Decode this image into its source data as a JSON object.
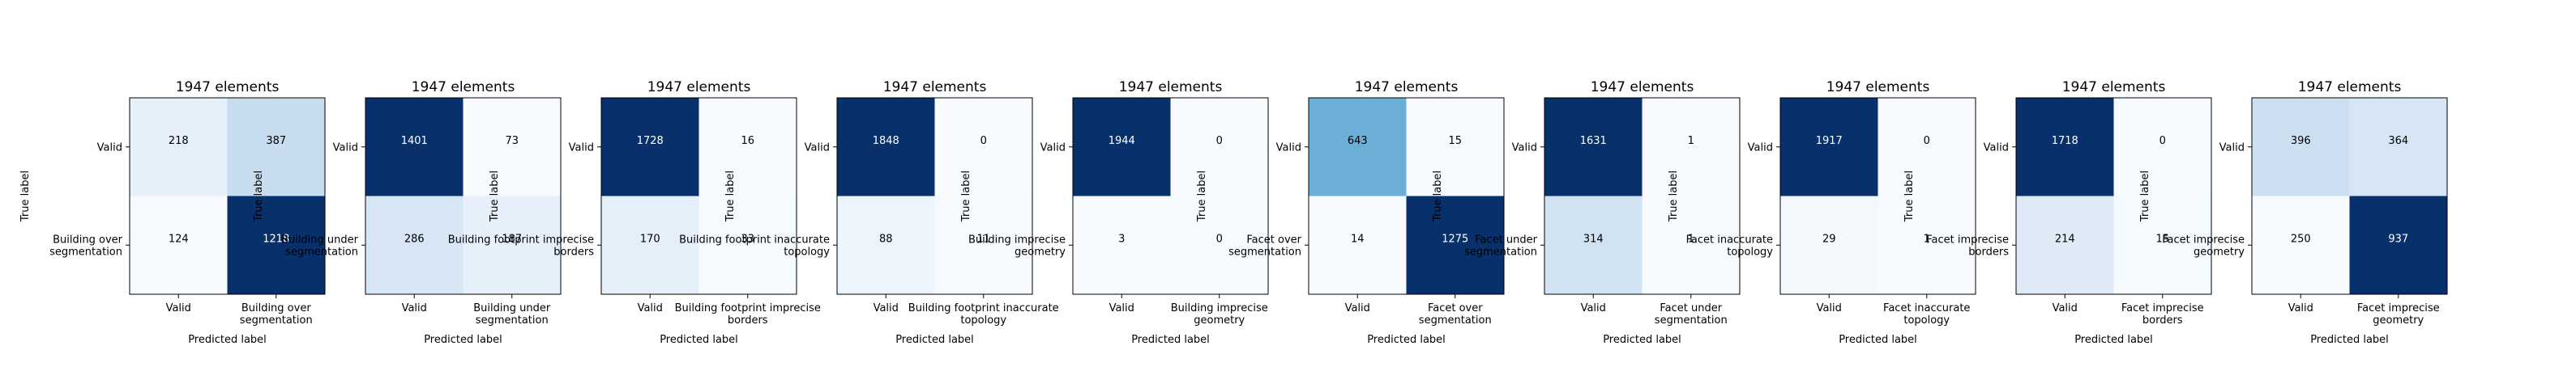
{
  "chart_data": [
    {
      "type": "heatmap",
      "title": "1947 elements",
      "xlabel": "Predicted label",
      "ylabel": "True label",
      "x_tick_labels": [
        "Valid",
        "Building over\nsegmentation"
      ],
      "y_tick_labels": [
        "Valid",
        "Building over\nsegmentation"
      ],
      "matrix": [
        [
          218,
          387
        ],
        [
          124,
          1218
        ]
      ]
    },
    {
      "type": "heatmap",
      "title": "1947 elements",
      "xlabel": "Predicted label",
      "ylabel": "True label",
      "x_tick_labels": [
        "Valid",
        "Building under\nsegmentation"
      ],
      "y_tick_labels": [
        "Valid",
        "Building under\nsegmentation"
      ],
      "matrix": [
        [
          1401,
          73
        ],
        [
          286,
          187
        ]
      ]
    },
    {
      "type": "heatmap",
      "title": "1947 elements",
      "xlabel": "Predicted label",
      "ylabel": "True label",
      "x_tick_labels": [
        "Valid",
        "Building footprint imprecise\nborders"
      ],
      "y_tick_labels": [
        "Valid",
        "Building footprint imprecise\nborders"
      ],
      "matrix": [
        [
          1728,
          16
        ],
        [
          170,
          33
        ]
      ]
    },
    {
      "type": "heatmap",
      "title": "1947 elements",
      "xlabel": "Predicted label",
      "ylabel": "True label",
      "x_tick_labels": [
        "Valid",
        "Building footprint inaccurate\ntopology"
      ],
      "y_tick_labels": [
        "Valid",
        "Building footprint inaccurate\ntopology"
      ],
      "matrix": [
        [
          1848,
          0
        ],
        [
          88,
          11
        ]
      ]
    },
    {
      "type": "heatmap",
      "title": "1947 elements",
      "xlabel": "Predicted label",
      "ylabel": "True label",
      "x_tick_labels": [
        "Valid",
        "Building imprecise\ngeometry"
      ],
      "y_tick_labels": [
        "Valid",
        "Building imprecise\ngeometry"
      ],
      "matrix": [
        [
          1944,
          0
        ],
        [
          3,
          0
        ]
      ]
    },
    {
      "type": "heatmap",
      "title": "1947 elements",
      "xlabel": "Predicted label",
      "ylabel": "True label",
      "x_tick_labels": [
        "Valid",
        "Facet over\nsegmentation"
      ],
      "y_tick_labels": [
        "Valid",
        "Facet over\nsegmentation"
      ],
      "matrix": [
        [
          643,
          15
        ],
        [
          14,
          1275
        ]
      ]
    },
    {
      "type": "heatmap",
      "title": "1947 elements",
      "xlabel": "Predicted label",
      "ylabel": "True label",
      "x_tick_labels": [
        "Valid",
        "Facet under\nsegmentation"
      ],
      "y_tick_labels": [
        "Valid",
        "Facet under\nsegmentation"
      ],
      "matrix": [
        [
          1631,
          1
        ],
        [
          314,
          1
        ]
      ]
    },
    {
      "type": "heatmap",
      "title": "1947 elements",
      "xlabel": "Predicted label",
      "ylabel": "True label",
      "x_tick_labels": [
        "Valid",
        "Facet inaccurate\ntopology"
      ],
      "y_tick_labels": [
        "Valid",
        "Facet inaccurate\ntopology"
      ],
      "matrix": [
        [
          1917,
          0
        ],
        [
          29,
          1
        ]
      ]
    },
    {
      "type": "heatmap",
      "title": "1947 elements",
      "xlabel": "Predicted label",
      "ylabel": "True label",
      "x_tick_labels": [
        "Valid",
        "Facet imprecise\nborders"
      ],
      "y_tick_labels": [
        "Valid",
        "Facet imprecise\nborders"
      ],
      "matrix": [
        [
          1718,
          0
        ],
        [
          214,
          15
        ]
      ]
    },
    {
      "type": "heatmap",
      "title": "1947 elements",
      "xlabel": "Predicted label",
      "ylabel": "True label",
      "x_tick_labels": [
        "Valid",
        "Facet imprecise\ngeometry"
      ],
      "y_tick_labels": [
        "Valid",
        "Facet imprecise\ngeometry"
      ],
      "matrix": [
        [
          396,
          364
        ],
        [
          250,
          937
        ]
      ]
    }
  ],
  "colormap": {
    "name": "Blues",
    "low": "#f7fbff",
    "high": "#08306b"
  }
}
